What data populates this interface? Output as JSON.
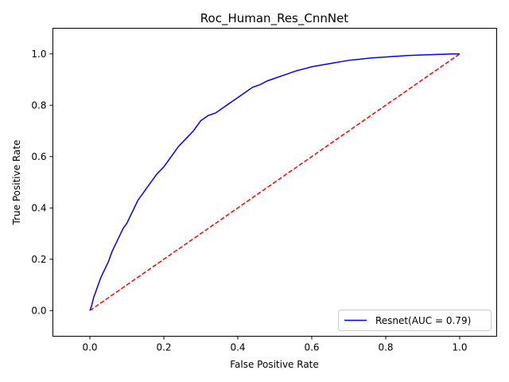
{
  "chart_data": {
    "type": "line",
    "title": "Roc_Human_Res_CnnNet",
    "xlabel": "False Positive Rate",
    "ylabel": "True Positive Rate",
    "xlim": [
      -0.1,
      1.1
    ],
    "ylim": [
      -0.1,
      1.1
    ],
    "x_ticks": [
      "0.0",
      "0.2",
      "0.4",
      "0.6",
      "0.8",
      "1.0"
    ],
    "y_ticks": [
      "0.0",
      "0.2",
      "0.4",
      "0.6",
      "0.8",
      "1.0"
    ],
    "grid": false,
    "legend_position": "lower-right",
    "series": [
      {
        "name": "Resnet(AUC = 0.79)",
        "color": "#0000ff",
        "style": "solid",
        "x": [
          0.0,
          0.005,
          0.01,
          0.02,
          0.03,
          0.04,
          0.05,
          0.06,
          0.07,
          0.08,
          0.09,
          0.1,
          0.11,
          0.12,
          0.13,
          0.14,
          0.15,
          0.16,
          0.17,
          0.18,
          0.2,
          0.22,
          0.24,
          0.26,
          0.28,
          0.3,
          0.32,
          0.34,
          0.36,
          0.38,
          0.4,
          0.42,
          0.44,
          0.46,
          0.48,
          0.5,
          0.52,
          0.54,
          0.56,
          0.58,
          0.6,
          0.62,
          0.64,
          0.66,
          0.68,
          0.7,
          0.72,
          0.74,
          0.76,
          0.78,
          0.8,
          0.82,
          0.84,
          0.86,
          0.88,
          0.9,
          0.92,
          0.94,
          0.96,
          0.98,
          1.0
        ],
        "y": [
          0.0,
          0.02,
          0.05,
          0.09,
          0.13,
          0.16,
          0.19,
          0.23,
          0.26,
          0.29,
          0.32,
          0.34,
          0.37,
          0.4,
          0.43,
          0.45,
          0.47,
          0.49,
          0.51,
          0.53,
          0.56,
          0.6,
          0.64,
          0.67,
          0.7,
          0.74,
          0.76,
          0.77,
          0.79,
          0.81,
          0.83,
          0.85,
          0.87,
          0.88,
          0.895,
          0.905,
          0.915,
          0.925,
          0.935,
          0.942,
          0.95,
          0.955,
          0.96,
          0.965,
          0.97,
          0.975,
          0.978,
          0.981,
          0.984,
          0.986,
          0.988,
          0.99,
          0.992,
          0.994,
          0.995,
          0.996,
          0.997,
          0.998,
          0.999,
          1.0,
          1.0
        ]
      },
      {
        "color": "#ff0000",
        "style": "dashed",
        "x": [
          0.0,
          1.0
        ],
        "y": [
          0.0,
          1.0
        ]
      }
    ]
  }
}
